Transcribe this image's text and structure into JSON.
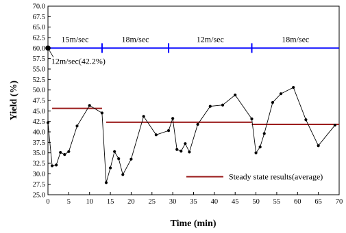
{
  "chart_data": {
    "type": "line",
    "xlabel": "Time (min)",
    "ylabel": "Yield (%)",
    "xlim": [
      0,
      70
    ],
    "ylim": [
      25.0,
      70.0
    ],
    "xticks": [
      0,
      5,
      10,
      15,
      20,
      25,
      30,
      35,
      40,
      45,
      50,
      55,
      60,
      65,
      70
    ],
    "yticks": [
      25.0,
      27.5,
      30.0,
      32.5,
      35.0,
      37.5,
      40.0,
      42.5,
      45.0,
      47.5,
      50.0,
      52.5,
      55.0,
      57.5,
      60.0,
      62.5,
      65.0,
      67.5,
      70.0
    ],
    "grid": false,
    "series": [
      {
        "color": "#000000",
        "points": [
          [
            0.0,
            42.2
          ],
          [
            1.0,
            31.9
          ],
          [
            2.0,
            32.1
          ],
          [
            3.0,
            35.1
          ],
          [
            4.0,
            34.6
          ],
          [
            5.0,
            35.3
          ],
          [
            7.0,
            41.4
          ],
          [
            10.0,
            46.3
          ],
          [
            13.0,
            44.5
          ],
          [
            14.0,
            27.9
          ],
          [
            15.0,
            31.4
          ],
          [
            16.0,
            35.3
          ],
          [
            17.0,
            33.6
          ],
          [
            18.0,
            29.8
          ],
          [
            20.0,
            33.5
          ],
          [
            23.0,
            43.7
          ],
          [
            26.0,
            39.3
          ],
          [
            29.0,
            40.3
          ],
          [
            30.0,
            43.2
          ],
          [
            31.0,
            35.8
          ],
          [
            32.0,
            35.4
          ],
          [
            33.0,
            37.2
          ],
          [
            34.0,
            35.2
          ],
          [
            36.0,
            41.8
          ],
          [
            39.0,
            46.1
          ],
          [
            42.0,
            46.4
          ],
          [
            45.0,
            48.8
          ],
          [
            49.0,
            43.1
          ],
          [
            50.0,
            35.0
          ],
          [
            51.0,
            36.4
          ],
          [
            52.0,
            39.6
          ],
          [
            54.0,
            47.0
          ],
          [
            56.0,
            49.1
          ],
          [
            59.0,
            50.6
          ],
          [
            62.0,
            42.9
          ],
          [
            65.0,
            36.7
          ],
          [
            69.0,
            41.6
          ]
        ]
      },
      {
        "name": "Steady state results(average)",
        "type": "segments",
        "color": "#9b1c1c",
        "segments": [
          {
            "x": [
              1,
              13
            ],
            "y": 45.6
          },
          {
            "x": [
              14,
              49
            ],
            "y": 42.3
          },
          {
            "x": [
              49,
              70
            ],
            "y": 41.8
          }
        ]
      },
      {
        "type": "hline",
        "color": "#0000ff",
        "y": 60.0,
        "x": [
          0,
          70
        ],
        "dividers": [
          13,
          29,
          49
        ]
      }
    ],
    "segment_labels": [
      {
        "text": "15m/sec",
        "x": 6.5,
        "y": 61.4
      },
      {
        "text": "18m/sec",
        "x": 21.0,
        "y": 61.4
      },
      {
        "text": "12m/sec",
        "x": 39.0,
        "y": 61.4
      },
      {
        "text": "18m/sec",
        "x": 59.5,
        "y": 61.4
      }
    ],
    "annotation": {
      "text": "12m/sec(42.2%)",
      "point": [
        0.0,
        60.0
      ],
      "label_at": [
        0.8,
        56.2
      ]
    },
    "legend": {
      "label": "Steady state results(average)",
      "position": "bottom-right"
    }
  }
}
